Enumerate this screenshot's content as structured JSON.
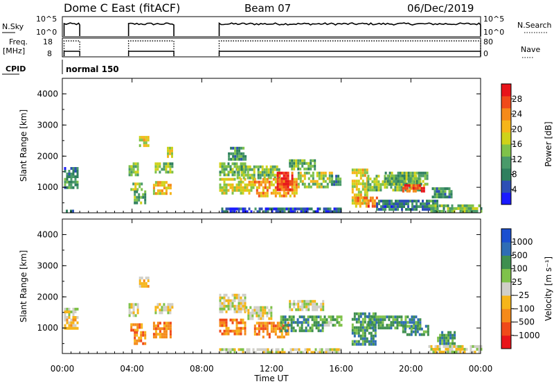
{
  "header": {
    "title": "Dome C East (fitACF)",
    "beam": "Beam 07",
    "date": "06/Dec/2019"
  },
  "labels": {
    "nsky": "N.Sky",
    "freq_1": "Freq.",
    "freq_2": "[MHz]",
    "cpid": "CPID",
    "nsearch": "N.Search",
    "nave": "Nave",
    "cpid_value": "normal 150",
    "nsky_ticks": [
      "10^5",
      "10^0"
    ],
    "freq_ticks": [
      "18",
      "8"
    ],
    "nave_ticks": [
      "80",
      "0"
    ]
  },
  "colors": {
    "power_scale": [
      "#1a1aff",
      "#2e4fb5",
      "#2f7f5e",
      "#4a9a6a",
      "#7fc24a",
      "#cfd21a",
      "#f6b51a",
      "#f58a1a",
      "#f04a1a",
      "#e8141a"
    ],
    "velocity_scale": [
      "#e8141a",
      "#f04a1a",
      "#f58a1a",
      "#f6b51a",
      "#d0cfc8",
      "#7fc24a",
      "#3f8f4f",
      "#2e6db5",
      "#1a4fd0"
    ]
  },
  "chart_data": [
    {
      "type": "heatmap",
      "name": "power",
      "xlabel": "Time UT",
      "ylabel": "Slant Range [km]",
      "xlim": [
        0,
        24
      ],
      "ylim": [
        180,
        4500
      ],
      "x_ticks": [
        "00:00",
        "04:00",
        "08:00",
        "12:00",
        "16:00",
        "20:00",
        "00:00"
      ],
      "y_ticks": [
        "1000",
        "2000",
        "3000",
        "4000"
      ],
      "colorbar_label": "Power [dB]",
      "colorbar_ticks": [
        "28",
        "24",
        "20",
        "16",
        "12",
        "8",
        "4"
      ],
      "colorbar_range": [
        0,
        32
      ],
      "regions": [
        {
          "t": [
            0.1,
            0.9
          ],
          "r": [
            1300,
            1650
          ],
          "v": 8
        },
        {
          "t": [
            0.1,
            0.9
          ],
          "r": [
            1000,
            1300
          ],
          "v": 10
        },
        {
          "t": [
            0.2,
            0.8
          ],
          "r": [
            200,
            280
          ],
          "v": 6
        },
        {
          "t": [
            3.8,
            4.3
          ],
          "r": [
            1400,
            1800
          ],
          "v": 14
        },
        {
          "t": [
            3.9,
            4.6
          ],
          "r": [
            900,
            1150
          ],
          "v": 16
        },
        {
          "t": [
            4.1,
            4.8
          ],
          "r": [
            500,
            900
          ],
          "v": 12
        },
        {
          "t": [
            4.4,
            4.9
          ],
          "r": [
            2300,
            2650
          ],
          "v": 18
        },
        {
          "t": [
            5.3,
            6.3
          ],
          "r": [
            1450,
            1800
          ],
          "v": 14
        },
        {
          "t": [
            5.2,
            6.2
          ],
          "r": [
            800,
            1200
          ],
          "v": 20
        },
        {
          "t": [
            6.0,
            6.3
          ],
          "r": [
            2000,
            2300
          ],
          "v": 18
        },
        {
          "t": [
            9.0,
            10.5
          ],
          "r": [
            1400,
            1800
          ],
          "v": 12
        },
        {
          "t": [
            9.0,
            11.0
          ],
          "r": [
            800,
            1300
          ],
          "v": 18
        },
        {
          "t": [
            9.5,
            10.5
          ],
          "r": [
            1900,
            2300
          ],
          "v": 10
        },
        {
          "t": [
            10.0,
            12.5
          ],
          "r": [
            1300,
            1700
          ],
          "v": 14
        },
        {
          "t": [
            11.0,
            13.5
          ],
          "r": [
            700,
            1300
          ],
          "v": 22
        },
        {
          "t": [
            12.3,
            13.2
          ],
          "r": [
            900,
            1500
          ],
          "v": 28
        },
        {
          "t": [
            13.5,
            15.5
          ],
          "r": [
            1000,
            1500
          ],
          "v": 16
        },
        {
          "t": [
            13.0,
            14.5
          ],
          "r": [
            1600,
            1900
          ],
          "v": 12
        },
        {
          "t": [
            15.3,
            16.0
          ],
          "r": [
            1100,
            1400
          ],
          "v": 10
        },
        {
          "t": [
            16.6,
            17.5
          ],
          "r": [
            500,
            1600
          ],
          "v": 18
        },
        {
          "t": [
            16.8,
            18.0
          ],
          "r": [
            350,
            700
          ],
          "v": 24
        },
        {
          "t": [
            17.5,
            20.5
          ],
          "r": [
            900,
            1400
          ],
          "v": 14
        },
        {
          "t": [
            18.5,
            21.0
          ],
          "r": [
            1100,
            1500
          ],
          "v": 12
        },
        {
          "t": [
            19.5,
            20.8
          ],
          "r": [
            900,
            1100
          ],
          "v": 26
        },
        {
          "t": [
            18.0,
            21.5
          ],
          "r": [
            300,
            600
          ],
          "v": 8
        },
        {
          "t": [
            21.0,
            24.0
          ],
          "r": [
            250,
            450
          ],
          "v": 14
        },
        {
          "t": [
            21.2,
            22.3
          ],
          "r": [
            700,
            1000
          ],
          "v": 10
        },
        {
          "t": [
            9.0,
            16.0
          ],
          "r": [
            200,
            350
          ],
          "v": 6
        }
      ]
    },
    {
      "type": "heatmap",
      "name": "velocity",
      "xlabel": "Time UT",
      "ylabel": "Slant Range [km]",
      "xlim": [
        0,
        24
      ],
      "ylim": [
        180,
        4500
      ],
      "x_ticks": [
        "00:00",
        "04:00",
        "08:00",
        "12:00",
        "16:00",
        "20:00",
        "00:00"
      ],
      "y_ticks": [
        "1000",
        "2000",
        "3000",
        "4000"
      ],
      "colorbar_label": "Velocity [m s⁻¹]",
      "colorbar_ticks": [
        "1000",
        "500",
        "100",
        "25",
        "−25",
        "−100",
        "−500",
        "−1000"
      ],
      "regions": [
        {
          "t": [
            0.1,
            0.9
          ],
          "r": [
            1300,
            1650
          ],
          "v": 4
        },
        {
          "t": [
            0.1,
            0.9
          ],
          "r": [
            1000,
            1300
          ],
          "v": 3
        },
        {
          "t": [
            3.8,
            4.3
          ],
          "r": [
            1400,
            1800
          ],
          "v": 4
        },
        {
          "t": [
            3.9,
            4.6
          ],
          "r": [
            900,
            1150
          ],
          "v": 2
        },
        {
          "t": [
            4.1,
            4.8
          ],
          "r": [
            500,
            900
          ],
          "v": 2
        },
        {
          "t": [
            4.4,
            4.9
          ],
          "r": [
            2300,
            2650
          ],
          "v": 3
        },
        {
          "t": [
            5.3,
            6.3
          ],
          "r": [
            1450,
            1800
          ],
          "v": 4
        },
        {
          "t": [
            5.2,
            6.2
          ],
          "r": [
            700,
            1200
          ],
          "v": 2
        },
        {
          "t": [
            9.0,
            10.5
          ],
          "r": [
            1500,
            2100
          ],
          "v": 4
        },
        {
          "t": [
            9.0,
            10.5
          ],
          "r": [
            800,
            1300
          ],
          "v": 2
        },
        {
          "t": [
            10.5,
            12.0
          ],
          "r": [
            1300,
            1700
          ],
          "v": 4
        },
        {
          "t": [
            11.0,
            13.0
          ],
          "r": [
            700,
            1200
          ],
          "v": 2
        },
        {
          "t": [
            12.5,
            15.0
          ],
          "r": [
            900,
            1400
          ],
          "v": 6
        },
        {
          "t": [
            13.0,
            15.0
          ],
          "r": [
            1600,
            1900
          ],
          "v": 4
        },
        {
          "t": [
            15.0,
            16.0
          ],
          "r": [
            1100,
            1400
          ],
          "v": 5
        },
        {
          "t": [
            16.6,
            18.0
          ],
          "r": [
            500,
            1500
          ],
          "v": 6
        },
        {
          "t": [
            17.5,
            20.5
          ],
          "r": [
            1000,
            1400
          ],
          "v": 6
        },
        {
          "t": [
            19.5,
            21.0
          ],
          "r": [
            800,
            1100
          ],
          "v": 6
        },
        {
          "t": [
            21.0,
            24.0
          ],
          "r": [
            250,
            450
          ],
          "v": 4
        },
        {
          "t": [
            21.5,
            22.5
          ],
          "r": [
            500,
            900
          ],
          "v": 6
        },
        {
          "t": [
            9.0,
            16.0
          ],
          "r": [
            200,
            350
          ],
          "v": 4
        }
      ]
    }
  ]
}
